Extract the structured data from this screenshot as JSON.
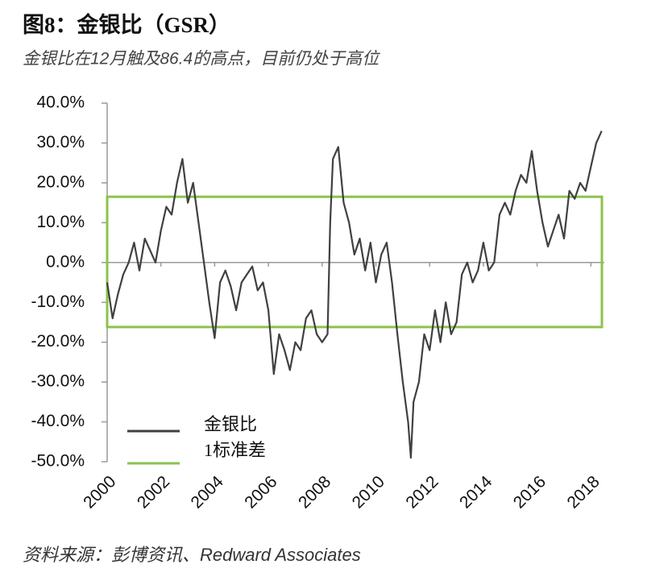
{
  "chart_data": {
    "type": "line",
    "title": "图8：金银比（GSR）",
    "subtitle": "金银比在12月触及86.4的高点，目前仍处于高位",
    "source": "资料来源：彭博资讯、Redward Associates",
    "x": [
      2000.0,
      2000.2,
      2000.4,
      2000.6,
      2000.8,
      2001.0,
      2001.2,
      2001.4,
      2001.6,
      2001.8,
      2002.0,
      2002.2,
      2002.4,
      2002.6,
      2002.8,
      2003.0,
      2003.2,
      2003.4,
      2003.6,
      2003.8,
      2004.0,
      2004.2,
      2004.4,
      2004.6,
      2004.8,
      2005.0,
      2005.2,
      2005.4,
      2005.6,
      2005.8,
      2006.0,
      2006.2,
      2006.4,
      2006.6,
      2006.8,
      2007.0,
      2007.2,
      2007.4,
      2007.6,
      2007.8,
      2008.0,
      2008.2,
      2008.3,
      2008.4,
      2008.6,
      2008.8,
      2009.0,
      2009.2,
      2009.4,
      2009.6,
      2009.8,
      2010.0,
      2010.2,
      2010.4,
      2010.6,
      2010.8,
      2011.0,
      2011.2,
      2011.3,
      2011.4,
      2011.6,
      2011.8,
      2012.0,
      2012.2,
      2012.4,
      2012.6,
      2012.8,
      2013.0,
      2013.2,
      2013.4,
      2013.6,
      2013.8,
      2014.0,
      2014.2,
      2014.4,
      2014.6,
      2014.8,
      2015.0,
      2015.2,
      2015.4,
      2015.6,
      2015.8,
      2016.0,
      2016.2,
      2016.4,
      2016.6,
      2016.8,
      2017.0,
      2017.2,
      2017.4,
      2017.6,
      2017.8,
      2018.0,
      2018.2,
      2018.4
    ],
    "series": [
      {
        "name": "金银比",
        "color": "#404040",
        "values": [
          -5,
          -14,
          -8,
          -3,
          0,
          5,
          -2,
          6,
          3,
          0,
          8,
          14,
          12,
          20,
          26,
          15,
          20,
          10,
          0,
          -10,
          -19,
          -5,
          -2,
          -6,
          -12,
          -5,
          -3,
          -1,
          -7,
          -5,
          -12,
          -28,
          -18,
          -22,
          -27,
          -20,
          -22,
          -14,
          -12,
          -18,
          -20,
          -18,
          10,
          26,
          29,
          15,
          10,
          2,
          6,
          -2,
          5,
          -5,
          2,
          5,
          -5,
          -18,
          -30,
          -40,
          -49,
          -35,
          -30,
          -18,
          -22,
          -12,
          -20,
          -10,
          -18,
          -15,
          -3,
          0,
          -5,
          -2,
          5,
          -2,
          0,
          12,
          15,
          12,
          18,
          22,
          20,
          28,
          18,
          10,
          4,
          8,
          12,
          6,
          18,
          16,
          20,
          18,
          24,
          30,
          33
        ]
      }
    ],
    "std_band": {
      "name": "1标准差",
      "color": "#8dc24c",
      "upper": 16.5,
      "lower": -16.2
    },
    "xlim": [
      2000,
      2018.5
    ],
    "xticks": [
      2000,
      2002,
      2004,
      2006,
      2008,
      2010,
      2012,
      2014,
      2016,
      2018
    ],
    "ylim": [
      -50,
      40
    ],
    "yticks": [
      {
        "value": -50,
        "label": "-50.0%"
      },
      {
        "value": -40,
        "label": "-40.0%"
      },
      {
        "value": -30,
        "label": "-30.0%"
      },
      {
        "value": -20,
        "label": "-20.0%"
      },
      {
        "value": -10,
        "label": "-10.0%"
      },
      {
        "value": 0,
        "label": "0.0%"
      },
      {
        "value": 10,
        "label": "10.0%"
      },
      {
        "value": 20,
        "label": "20.0%"
      },
      {
        "value": 30,
        "label": "30.0%"
      },
      {
        "value": 40,
        "label": "40.0%"
      }
    ],
    "legend": "lower-left"
  }
}
